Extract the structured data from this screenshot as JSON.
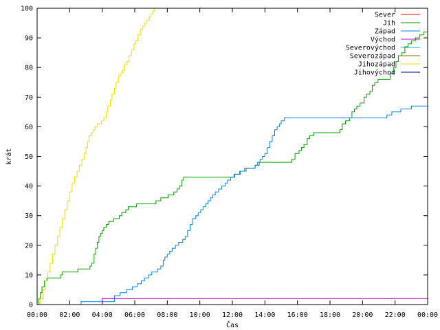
{
  "chart_data": {
    "type": "line",
    "xlabel": "Čas",
    "ylabel": "krát",
    "xlim": [
      0,
      24
    ],
    "ylim": [
      0,
      100
    ],
    "x_ticks": [
      {
        "v": 0,
        "label": "00:00"
      },
      {
        "v": 2,
        "label": "02:00"
      },
      {
        "v": 4,
        "label": "04:00"
      },
      {
        "v": 6,
        "label": "06:00"
      },
      {
        "v": 8,
        "label": "08:00"
      },
      {
        "v": 10,
        "label": "10:00"
      },
      {
        "v": 12,
        "label": "12:00"
      },
      {
        "v": 14,
        "label": "14:00"
      },
      {
        "v": 16,
        "label": "16:00"
      },
      {
        "v": 18,
        "label": "18:00"
      },
      {
        "v": 20,
        "label": "20:00"
      },
      {
        "v": 22,
        "label": "22:00"
      },
      {
        "v": 24,
        "label": "00:00"
      }
    ],
    "y_ticks": [
      {
        "v": 0,
        "label": "0"
      },
      {
        "v": 10,
        "label": "10"
      },
      {
        "v": 20,
        "label": "20"
      },
      {
        "v": 30,
        "label": "30"
      },
      {
        "v": 40,
        "label": "40"
      },
      {
        "v": 50,
        "label": "50"
      },
      {
        "v": 60,
        "label": "60"
      },
      {
        "v": 70,
        "label": "70"
      },
      {
        "v": 80,
        "label": "80"
      },
      {
        "v": 90,
        "label": "90"
      },
      {
        "v": 100,
        "label": "100"
      }
    ],
    "grid": false,
    "legend_position": "top-right",
    "series": [
      {
        "name": "Sever",
        "color": "#ff0000",
        "x": [],
        "y": []
      },
      {
        "name": "Jih",
        "color": "#00a000",
        "step": true,
        "x": [
          0,
          0.1,
          0.2,
          0.3,
          0.45,
          0.6,
          1.45,
          1.55,
          2.35,
          2.5,
          3.0,
          3.25,
          3.35,
          3.5,
          3.6,
          3.7,
          3.8,
          3.9,
          4.0,
          4.1,
          4.25,
          4.4,
          4.5,
          4.7,
          5.05,
          5.2,
          5.45,
          5.6,
          5.75,
          6.1,
          7.05,
          7.3,
          7.6,
          8.05,
          8.4,
          8.6,
          8.75,
          8.9,
          9.0,
          11.55,
          11.8,
          12.15,
          12.5,
          12.75,
          13.0,
          13.4,
          13.65,
          14.1,
          15.65,
          15.85,
          16.1,
          16.25,
          16.4,
          16.6,
          16.75,
          17.0,
          18.45,
          18.6,
          18.75,
          18.95,
          19.2,
          19.35,
          19.5,
          19.65,
          19.85,
          20.1,
          20.25,
          20.45,
          20.6,
          20.75,
          20.95,
          21.2,
          21.45,
          21.7,
          21.9,
          22.05,
          22.2,
          22.4,
          22.6,
          22.8,
          23.0,
          23.25,
          23.5,
          23.75,
          24
        ],
        "y": [
          0,
          2,
          4,
          6,
          8,
          9,
          10,
          11,
          11,
          12,
          12,
          13,
          14,
          17,
          19,
          21,
          23,
          24,
          25,
          26,
          27,
          28,
          28,
          29,
          30,
          31,
          32,
          33,
          33,
          34,
          34,
          35,
          36,
          37,
          38,
          39,
          40,
          42,
          43,
          43,
          43,
          44,
          45,
          46,
          46,
          47,
          48,
          48,
          49,
          51,
          52,
          53,
          54,
          56,
          57,
          58,
          58,
          59,
          61,
          62,
          63,
          65,
          66,
          67,
          68,
          70,
          71,
          72,
          74,
          75,
          76,
          76,
          76,
          78,
          80,
          82,
          84,
          85,
          87,
          88,
          89,
          90,
          91,
          92,
          93
        ]
      },
      {
        "name": "Západ",
        "color": "#0080ff",
        "step": true,
        "x": [
          0,
          2.6,
          2.7,
          4.5,
          4.75,
          5.1,
          5.5,
          5.85,
          6.15,
          6.4,
          6.6,
          6.85,
          7.05,
          7.4,
          7.6,
          7.75,
          7.85,
          8.0,
          8.15,
          8.3,
          8.5,
          8.7,
          8.95,
          9.1,
          9.25,
          9.4,
          9.55,
          9.75,
          9.9,
          10.05,
          10.2,
          10.35,
          10.5,
          10.65,
          10.8,
          10.95,
          11.15,
          11.35,
          11.55,
          11.7,
          11.9,
          12.1,
          12.25,
          12.45,
          12.65,
          12.85,
          13.05,
          13.25,
          13.4,
          13.55,
          13.7,
          13.85,
          14.0,
          14.15,
          14.3,
          14.45,
          14.6,
          14.75,
          14.9,
          15.0,
          15.2,
          21.25,
          21.5,
          21.8,
          22.35,
          23.0,
          24
        ],
        "y": [
          0,
          0,
          1,
          1,
          3,
          4,
          5,
          6,
          7,
          8,
          9,
          10,
          11,
          12,
          13,
          15,
          16,
          17,
          18,
          19,
          20,
          21,
          22,
          23,
          25,
          27,
          29,
          30,
          31,
          32,
          33,
          34,
          35,
          36,
          37,
          38,
          39,
          40,
          41,
          42,
          43,
          44,
          44,
          45,
          45,
          46,
          46,
          46,
          47,
          48,
          49,
          50,
          51,
          53,
          55,
          57,
          59,
          60,
          61,
          62,
          63,
          63,
          64,
          65,
          66,
          67,
          68
        ]
      },
      {
        "name": "Východ",
        "color": "#c000c0",
        "step": true,
        "x": [
          0,
          3.95,
          4.0,
          24
        ],
        "y": [
          0,
          0,
          2,
          2
        ]
      },
      {
        "name": "Severovýchod",
        "color": "#00c0c0",
        "x": [],
        "y": []
      },
      {
        "name": "Severozápad",
        "color": "#a06000",
        "x": [],
        "y": []
      },
      {
        "name": "Jihozápad",
        "color": "#ffd700",
        "step": true,
        "x": [
          0,
          0.2,
          0.35,
          0.5,
          0.65,
          0.8,
          0.95,
          1.1,
          1.25,
          1.4,
          1.55,
          1.7,
          1.85,
          2.0,
          2.15,
          2.3,
          2.45,
          2.6,
          2.75,
          2.9,
          3.0,
          3.1,
          3.2,
          3.35,
          3.45,
          3.55,
          3.7,
          3.85,
          3.95,
          4.1,
          4.25,
          4.35,
          4.5,
          4.6,
          4.75,
          4.85,
          5.0,
          5.1,
          5.25,
          5.35,
          5.5,
          5.65,
          5.8,
          5.95,
          6.05,
          6.2,
          6.35,
          6.5,
          6.6,
          6.75,
          6.9,
          7.0,
          7.1,
          7.2
        ],
        "y": [
          0,
          2,
          5,
          8,
          11,
          14,
          17,
          20,
          23,
          26,
          29,
          32,
          35,
          38,
          41,
          43,
          45,
          47,
          49,
          51,
          53,
          55,
          57,
          58,
          59,
          60,
          61,
          61,
          62,
          63,
          65,
          67,
          69,
          71,
          73,
          75,
          77,
          78,
          79,
          81,
          82,
          84,
          86,
          88,
          89,
          91,
          93,
          94,
          95,
          96,
          97,
          98,
          99,
          100
        ]
      },
      {
        "name": "Jihovýchod",
        "color": "#0000a0",
        "x": [],
        "y": []
      }
    ]
  }
}
